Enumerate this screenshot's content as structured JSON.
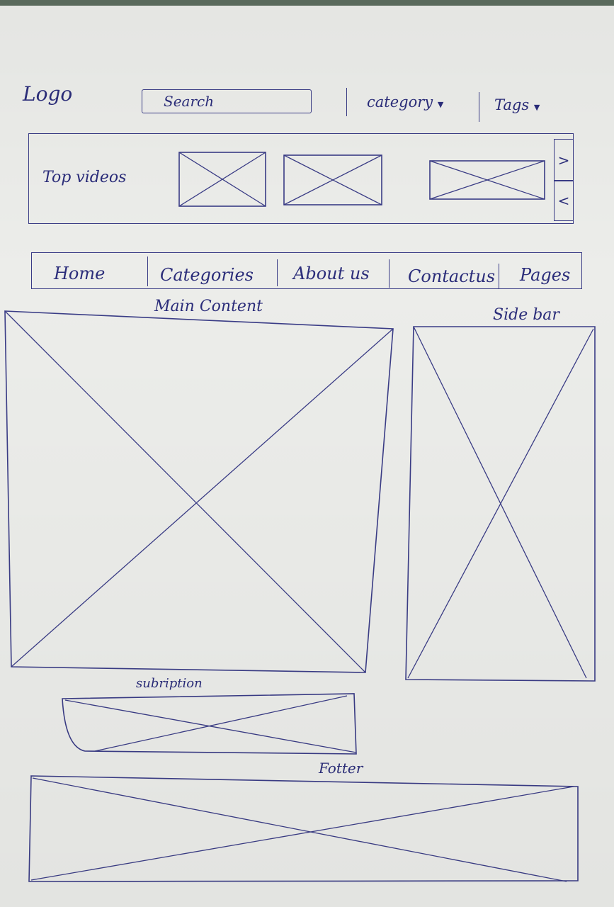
{
  "header": {
    "logo": "Logo",
    "search_placeholder": "Search",
    "category_label": "category",
    "tags_label": "Tags"
  },
  "top_videos": {
    "label": "Top videos",
    "next_glyph": ">",
    "prev_glyph": "<"
  },
  "nav": {
    "items": [
      "Home",
      "Categories",
      "About us",
      "Contactus",
      "Pages"
    ]
  },
  "sections": {
    "main_content": "Main Content",
    "sidebar": "Side bar",
    "subscription": "subription",
    "footer": "Fotter"
  },
  "colors": {
    "ink": "#2b2d7a",
    "paper": "#ecedea"
  }
}
